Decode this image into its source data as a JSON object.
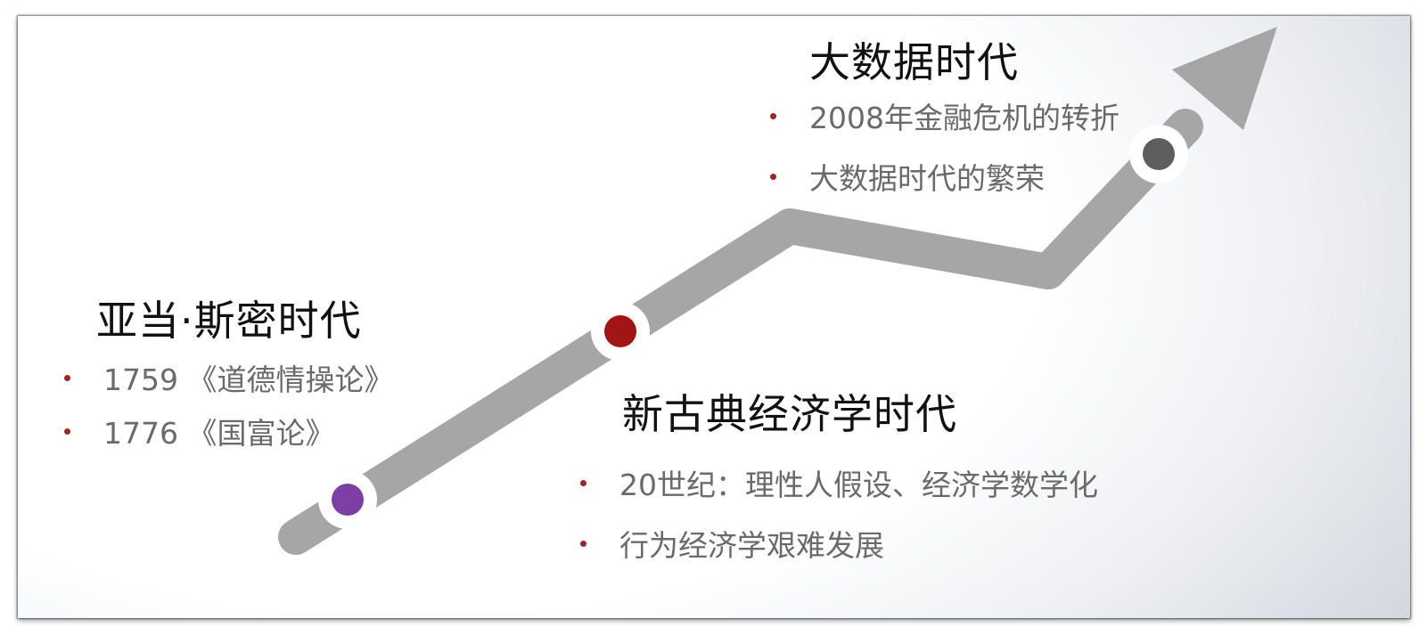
{
  "colors": {
    "path": "#a6a6a6",
    "marker_ring": "#ffffff",
    "bullet": "#a3241f",
    "title_text": "#111111",
    "item_text": "#6a6a6a"
  },
  "eras": [
    {
      "title": "亚当·斯密时代",
      "marker_color": "#7b3fa6",
      "items": [
        "1759 《道德情操论》",
        "1776 《国富论》"
      ]
    },
    {
      "title": "新古典经济学时代",
      "marker_color": "#a31414",
      "items": [
        "20世纪：理性人假设、经济学数学化",
        "行为经济学艰难发展"
      ]
    },
    {
      "title": "大数据时代",
      "marker_color": "#5e5e5e",
      "items": [
        "2008年金融危机的转折",
        "大数据时代的繁荣"
      ]
    }
  ]
}
